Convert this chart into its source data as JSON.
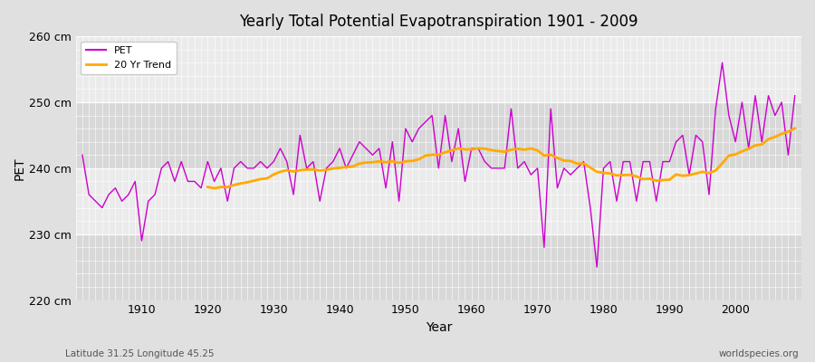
{
  "title": "Yearly Total Potential Evapotranspiration 1901 - 2009",
  "xlabel": "Year",
  "ylabel": "PET",
  "subtitle_left": "Latitude 31.25 Longitude 45.25",
  "subtitle_right": "worldspecies.org",
  "pet_color": "#cc00cc",
  "trend_color": "#ffaa00",
  "bg_color": "#e0e0e0",
  "band_color_light": "#ebebeb",
  "band_color_dark": "#d8d8d8",
  "ylim": [
    220,
    260
  ],
  "yticks": [
    220,
    230,
    240,
    250,
    260
  ],
  "ytick_labels": [
    "220 cm",
    "230 cm",
    "240 cm",
    "250 cm",
    "260 cm"
  ],
  "xlim_start": 1900,
  "xlim_end": 2010,
  "years": [
    1901,
    1902,
    1903,
    1904,
    1905,
    1906,
    1907,
    1908,
    1909,
    1910,
    1911,
    1912,
    1913,
    1914,
    1915,
    1916,
    1917,
    1918,
    1919,
    1920,
    1921,
    1922,
    1923,
    1924,
    1925,
    1926,
    1927,
    1928,
    1929,
    1930,
    1931,
    1932,
    1933,
    1934,
    1935,
    1936,
    1937,
    1938,
    1939,
    1940,
    1941,
    1942,
    1943,
    1944,
    1945,
    1946,
    1947,
    1948,
    1949,
    1950,
    1951,
    1952,
    1953,
    1954,
    1955,
    1956,
    1957,
    1958,
    1959,
    1960,
    1961,
    1962,
    1963,
    1964,
    1965,
    1966,
    1967,
    1968,
    1969,
    1970,
    1971,
    1972,
    1973,
    1974,
    1975,
    1976,
    1977,
    1978,
    1979,
    1980,
    1981,
    1982,
    1983,
    1984,
    1985,
    1986,
    1987,
    1988,
    1989,
    1990,
    1991,
    1992,
    1993,
    1994,
    1995,
    1996,
    1997,
    1998,
    1999,
    2000,
    2001,
    2002,
    2003,
    2004,
    2005,
    2006,
    2007,
    2008,
    2009
  ],
  "pet_values": [
    242,
    236,
    235,
    234,
    236,
    237,
    235,
    236,
    238,
    229,
    235,
    236,
    240,
    241,
    238,
    241,
    238,
    238,
    237,
    241,
    238,
    240,
    235,
    240,
    241,
    240,
    240,
    241,
    240,
    241,
    243,
    241,
    236,
    245,
    240,
    241,
    235,
    240,
    241,
    243,
    240,
    242,
    244,
    243,
    242,
    243,
    237,
    244,
    235,
    246,
    244,
    246,
    247,
    248,
    240,
    248,
    241,
    246,
    238,
    243,
    243,
    241,
    240,
    240,
    240,
    249,
    240,
    241,
    239,
    240,
    228,
    249,
    237,
    240,
    239,
    240,
    241,
    234,
    225,
    240,
    241,
    235,
    241,
    241,
    235,
    241,
    241,
    235,
    241,
    241,
    244,
    245,
    239,
    245,
    244,
    236,
    249,
    256,
    248,
    244,
    250,
    243,
    251,
    244,
    251,
    248,
    250,
    242,
    251
  ],
  "legend_entries": [
    "PET",
    "20 Yr Trend"
  ],
  "trend_window": 20
}
